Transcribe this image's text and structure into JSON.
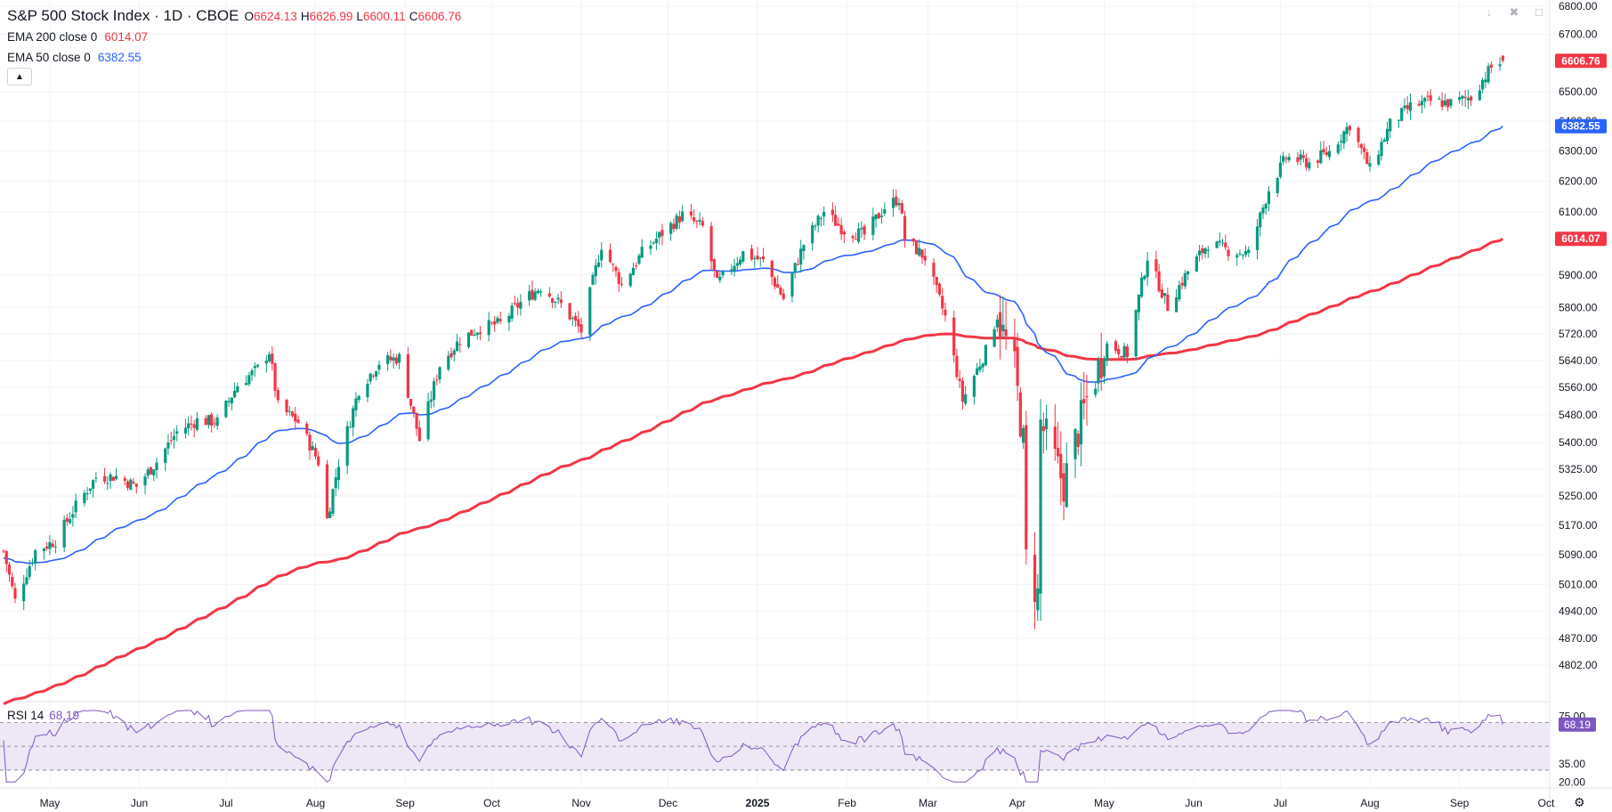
{
  "header": {
    "title": "S&P 500 Stock Index · 1D · CBOE",
    "ohlc": [
      {
        "key": "O",
        "value": "6624.13"
      },
      {
        "key": "H",
        "value": "6626.99"
      },
      {
        "key": "L",
        "value": "6600.11"
      },
      {
        "key": "C",
        "value": "6606.76"
      }
    ],
    "indicators": [
      {
        "label": "EMA 200 close 0",
        "value": "6014.07",
        "color": "#f23645"
      },
      {
        "label": "EMA 50 close 0",
        "value": "6382.55",
        "color": "#2962ff"
      }
    ]
  },
  "rsi": {
    "label": "RSI 14",
    "value": "68.19",
    "color": "#7e57c2"
  },
  "colors": {
    "up": "#089981",
    "down": "#f23645",
    "ema200": "#f23645",
    "ema50": "#2962ff",
    "rsi": "#7e57c2",
    "rsi_band": "#ede7f6"
  },
  "chart_data": {
    "type": "candlestick",
    "title": "S&P 500 Stock Index · 1D · CBOE",
    "x_ticks": [
      "May",
      "Jun",
      "Jul",
      "Aug",
      "Sep",
      "Oct",
      "Nov",
      "Dec",
      "2025",
      "Feb",
      "Mar",
      "Apr",
      "May",
      "Jun",
      "Jul",
      "Aug",
      "Sep",
      "Oct"
    ],
    "y_ticks": [
      "6800.00",
      "6700.00",
      "6500.00",
      "6400.00",
      "6300.00",
      "6200.00",
      "6100.00",
      "5900.00",
      "5800.00",
      "5720.00",
      "5640.00",
      "5560.00",
      "5480.00",
      "5400.00",
      "5325.00",
      "5250.00",
      "5170.00",
      "5090.00",
      "5010.00",
      "4940.00",
      "4870.00",
      "4802.00"
    ],
    "y_scale": "log",
    "price_labels": [
      {
        "value": "6606.76",
        "color": "#f23645"
      },
      {
        "value": "6382.55",
        "color": "#2962ff"
      },
      {
        "value": "6014.07",
        "color": "#f23645"
      }
    ],
    "close_series": {
      "approximate": true,
      "points": [
        [
          "2024-04-15",
          5100
        ],
        [
          "2024-04-19",
          4967
        ],
        [
          "2024-04-26",
          5100
        ],
        [
          "2024-05-03",
          5128
        ],
        [
          "2024-05-10",
          5222
        ],
        [
          "2024-05-17",
          5303
        ],
        [
          "2024-05-24",
          5305
        ],
        [
          "2024-05-31",
          5277
        ],
        [
          "2024-06-07",
          5346
        ],
        [
          "2024-06-14",
          5431
        ],
        [
          "2024-06-21",
          5464
        ],
        [
          "2024-06-28",
          5460
        ],
        [
          "2024-07-05",
          5567
        ],
        [
          "2024-07-12",
          5615
        ],
        [
          "2024-07-16",
          5667
        ],
        [
          "2024-07-19",
          5505
        ],
        [
          "2024-07-26",
          5459
        ],
        [
          "2024-08-02",
          5346
        ],
        [
          "2024-08-05",
          5186
        ],
        [
          "2024-08-09",
          5344
        ],
        [
          "2024-08-16",
          5554
        ],
        [
          "2024-08-23",
          5634
        ],
        [
          "2024-08-30",
          5648
        ],
        [
          "2024-09-06",
          5408
        ],
        [
          "2024-09-13",
          5626
        ],
        [
          "2024-09-20",
          5702
        ],
        [
          "2024-09-27",
          5738
        ],
        [
          "2024-10-04",
          5751
        ],
        [
          "2024-10-11",
          5815
        ],
        [
          "2024-10-18",
          5864
        ],
        [
          "2024-10-25",
          5808
        ],
        [
          "2024-11-01",
          5728
        ],
        [
          "2024-11-08",
          5995
        ],
        [
          "2024-11-15",
          5870
        ],
        [
          "2024-11-22",
          5969
        ],
        [
          "2024-11-29",
          6032
        ],
        [
          "2024-12-06",
          6090
        ],
        [
          "2024-12-13",
          6051
        ],
        [
          "2024-12-18",
          5872
        ],
        [
          "2024-12-27",
          5970
        ],
        [
          "2025-01-03",
          5942
        ],
        [
          "2025-01-10",
          5827
        ],
        [
          "2025-01-17",
          5997
        ],
        [
          "2025-01-24",
          6101
        ],
        [
          "2025-01-31",
          6041
        ],
        [
          "2025-02-07",
          6026
        ],
        [
          "2025-02-14",
          6115
        ],
        [
          "2025-02-19",
          6144
        ],
        [
          "2025-02-21",
          6013
        ],
        [
          "2025-02-28",
          5955
        ],
        [
          "2025-03-07",
          5770
        ],
        [
          "2025-03-13",
          5522
        ],
        [
          "2025-03-21",
          5667
        ],
        [
          "2025-03-25",
          5776
        ],
        [
          "2025-03-31",
          5612
        ],
        [
          "2025-04-03",
          5397
        ],
        [
          "2025-04-04",
          5074
        ],
        [
          "2025-04-08",
          4982
        ],
        [
          "2025-04-09",
          5457
        ],
        [
          "2025-04-17",
          5283
        ],
        [
          "2025-04-25",
          5525
        ],
        [
          "2025-05-02",
          5687
        ],
        [
          "2025-05-09",
          5660
        ],
        [
          "2025-05-16",
          5958
        ],
        [
          "2025-05-23",
          5803
        ],
        [
          "2025-05-30",
          5912
        ],
        [
          "2025-06-06",
          6000
        ],
        [
          "2025-06-13",
          5977
        ],
        [
          "2025-06-20",
          5967
        ],
        [
          "2025-06-27",
          6173
        ],
        [
          "2025-07-03",
          6279
        ],
        [
          "2025-07-11",
          6260
        ],
        [
          "2025-07-18",
          6297
        ],
        [
          "2025-07-25",
          6389
        ],
        [
          "2025-08-01",
          6238
        ],
        [
          "2025-08-08",
          6389
        ],
        [
          "2025-08-15",
          6449
        ],
        [
          "2025-08-22",
          6467
        ],
        [
          "2025-08-29",
          6460
        ],
        [
          "2025-09-05",
          6482
        ],
        [
          "2025-09-12",
          6584
        ],
        [
          "2025-09-16",
          6606.76
        ]
      ]
    },
    "series": [
      {
        "name": "EMA 200 close 0",
        "last": 6014.07
      },
      {
        "name": "EMA 50 close 0",
        "last": 6382.55
      },
      {
        "name": "RSI 14",
        "last": 68.19
      }
    ],
    "rsi_panel": {
      "y_ticks": [
        "75.00",
        "35.00",
        "20.00"
      ],
      "bands": [
        30,
        70
      ],
      "mid": 50,
      "range": [
        20,
        80
      ]
    }
  }
}
